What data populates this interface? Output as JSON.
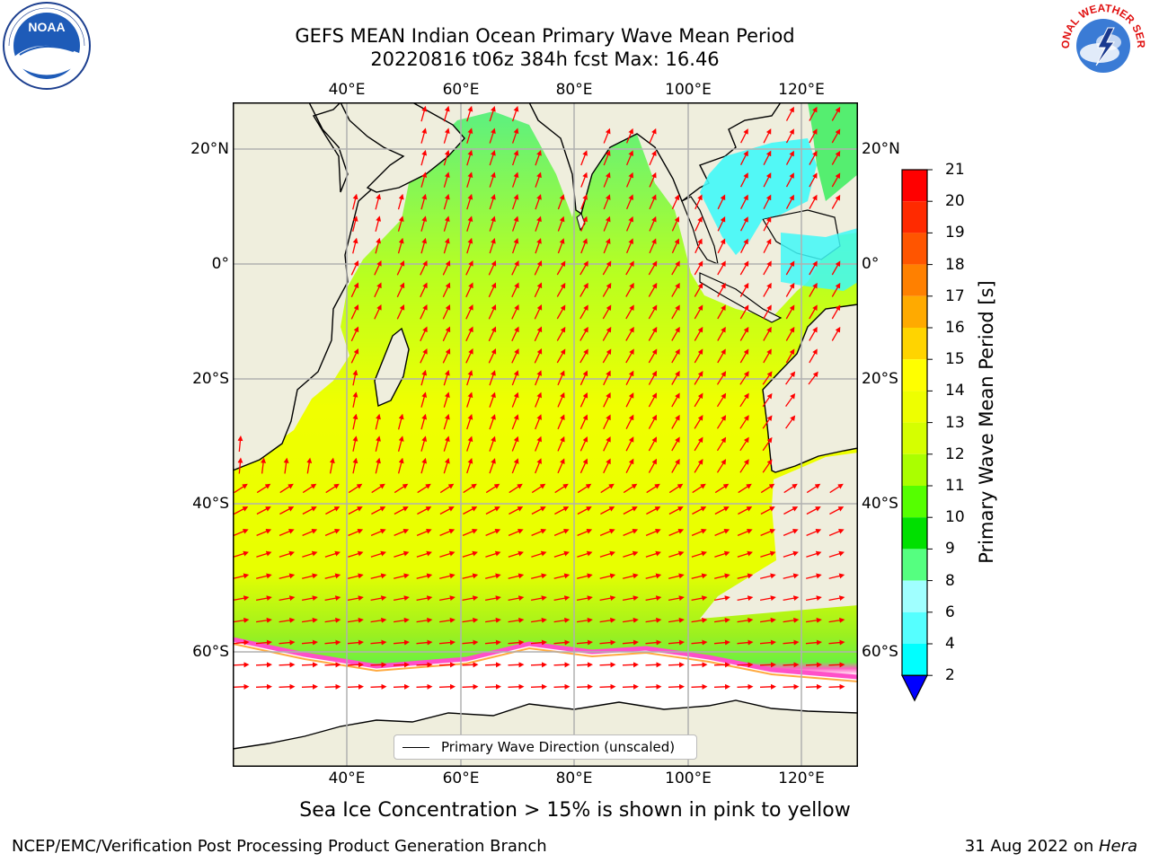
{
  "title": {
    "line1": "GEFS MEAN Indian Ocean Primary Wave Mean Period",
    "line2": "20220816 t06z 384h fcst   Max: 16.46"
  },
  "axes": {
    "lon_ticks": [
      "40°E",
      "60°E",
      "80°E",
      "100°E",
      "120°E"
    ],
    "lat_ticks": [
      "20°N",
      "0°",
      "20°S",
      "40°S",
      "60°S"
    ]
  },
  "colorbar": {
    "label": "Primary Wave Mean Period [s]",
    "levels": [
      "21",
      "20",
      "19",
      "18",
      "17",
      "16",
      "15",
      "14",
      "13",
      "12",
      "11",
      "10",
      "9",
      "8",
      "6",
      "4",
      "2"
    ],
    "colors": [
      "#ff0000",
      "#ff2a00",
      "#ff5500",
      "#ff8000",
      "#ffaa00",
      "#ffd400",
      "#ffff00",
      "#eeff00",
      "#d5ff00",
      "#aaff00",
      "#55ff00",
      "#00e000",
      "#55ff80",
      "#a0ffff",
      "#55ffff",
      "#00ffff",
      "#00aaff",
      "#0080ff"
    ],
    "extend_color": "#0000ff"
  },
  "legend": {
    "label": "Primary Wave Direction (unscaled)"
  },
  "note": "Sea Ice Concentration > 15% is shown in pink to yellow",
  "footer": {
    "left": "NCEP/EMC/Verification Post Processing Product Generation Branch",
    "right_date": "31 Aug 2022 on ",
    "right_host": "Hera"
  },
  "logos": {
    "left": "NOAA",
    "right": "NATIONAL WEATHER SERVICE"
  },
  "colors": {
    "land": "#efeedd",
    "ice": "#ffffff",
    "arrow": "#ff0000",
    "grid": "#b0b0b0"
  }
}
